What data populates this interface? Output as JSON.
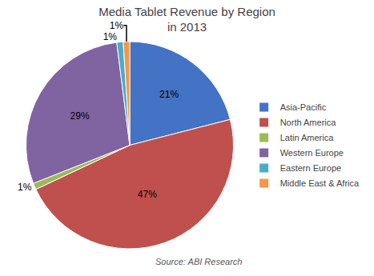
{
  "chart_data": {
    "type": "pie",
    "title": "Media Tablet Revenue by Region\nin 2013",
    "categories": [
      "Asia-Pacific",
      "North America",
      "Latin America",
      "Western Europe",
      "Eastern Europe",
      "Middle East & Africa"
    ],
    "values": [
      21,
      47,
      1,
      29,
      1,
      1
    ],
    "value_labels": [
      "21%",
      "47%",
      "1%",
      "29%",
      "1%",
      "1%"
    ],
    "colors": [
      "#4472C4",
      "#C0504D",
      "#9BBB59",
      "#8064A2",
      "#4BACC6",
      "#F79646"
    ],
    "data_labels": true,
    "legend": "right",
    "annotations": [
      "Source: ABI Research"
    ]
  }
}
